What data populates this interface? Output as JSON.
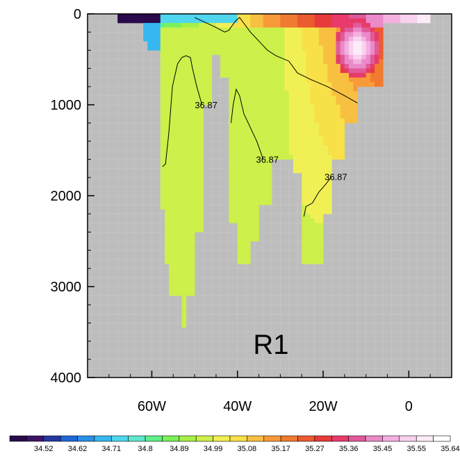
{
  "chart_data": {
    "type": "heatmap",
    "title": "",
    "panel_label": "R1",
    "xlabel": "",
    "ylabel": "",
    "x_range": [
      -75,
      10
    ],
    "y_range": [
      0,
      4000
    ],
    "y_inverted": true,
    "x_ticks": [
      {
        "value": -60,
        "label": "60W"
      },
      {
        "value": -40,
        "label": "40W"
      },
      {
        "value": -20,
        "label": "20W"
      },
      {
        "value": 0,
        "label": "0"
      }
    ],
    "y_ticks": [
      {
        "value": 0,
        "label": "0"
      },
      {
        "value": 1000,
        "label": "1000"
      },
      {
        "value": 2000,
        "label": "2000"
      },
      {
        "value": 3000,
        "label": "3000"
      },
      {
        "value": 4000,
        "label": "4000"
      }
    ],
    "missing_color": "#bdbdbd",
    "colorbar": {
      "labels": [
        "34.52",
        "34.62",
        "34.71",
        "34.8",
        "34.89",
        "34.99",
        "35.08",
        "35.17",
        "35.27",
        "35.36",
        "35.45",
        "35.55",
        "35.64"
      ],
      "colors": [
        "#2a0a4a",
        "#3d1466",
        "#2637a0",
        "#1f66d8",
        "#2a8fe8",
        "#36b7f0",
        "#4fd6ee",
        "#5ee8cf",
        "#5ef08a",
        "#7cf05a",
        "#a6f048",
        "#cdf04a",
        "#f0f055",
        "#f8e048",
        "#f8c040",
        "#f89a38",
        "#f07a30",
        "#ec5a30",
        "#e83a3a",
        "#e83a6a",
        "#e05a9a",
        "#ea8ac8",
        "#f4b0e0",
        "#f8d2ee",
        "#fcecf8",
        "#ffffff"
      ]
    },
    "contours": [
      {
        "label": "36.87",
        "points": [
          [
            -57.5,
            1680
          ],
          [
            -56.8,
            1650
          ],
          [
            -56,
            1300
          ],
          [
            -55.2,
            800
          ],
          [
            -54,
            550
          ],
          [
            -53,
            480
          ],
          [
            -52,
            460
          ],
          [
            -51,
            480
          ],
          [
            -50.5,
            600
          ],
          [
            -49.5,
            800
          ],
          [
            -48.3,
            1000
          ]
        ]
      },
      {
        "label": "36.87",
        "points": [
          [
            -41.5,
            1200
          ],
          [
            -41,
            1000
          ],
          [
            -40.3,
            830
          ],
          [
            -39.5,
            900
          ],
          [
            -38.5,
            1100
          ],
          [
            -37,
            1250
          ],
          [
            -35.5,
            1400
          ],
          [
            -34,
            1600
          ]
        ]
      },
      {
        "label": "36.87",
        "points": [
          [
            -24.5,
            2230
          ],
          [
            -24,
            2120
          ],
          [
            -22.5,
            2080
          ],
          [
            -21,
            1960
          ],
          [
            -19.5,
            1880
          ],
          [
            -18,
            1790
          ]
        ]
      },
      {
        "label": "",
        "points": [
          [
            -50,
            40
          ],
          [
            -45,
            150
          ],
          [
            -43,
            200
          ],
          [
            -42,
            180
          ],
          [
            -40.5,
            80
          ],
          [
            -39.5,
            40
          ],
          [
            -37,
            200
          ],
          [
            -33,
            400
          ],
          [
            -31,
            460
          ],
          [
            -28,
            520
          ],
          [
            -26,
            650
          ],
          [
            -23,
            720
          ],
          [
            -19,
            800
          ],
          [
            -15,
            900
          ],
          [
            -12,
            980
          ]
        ]
      }
    ]
  }
}
